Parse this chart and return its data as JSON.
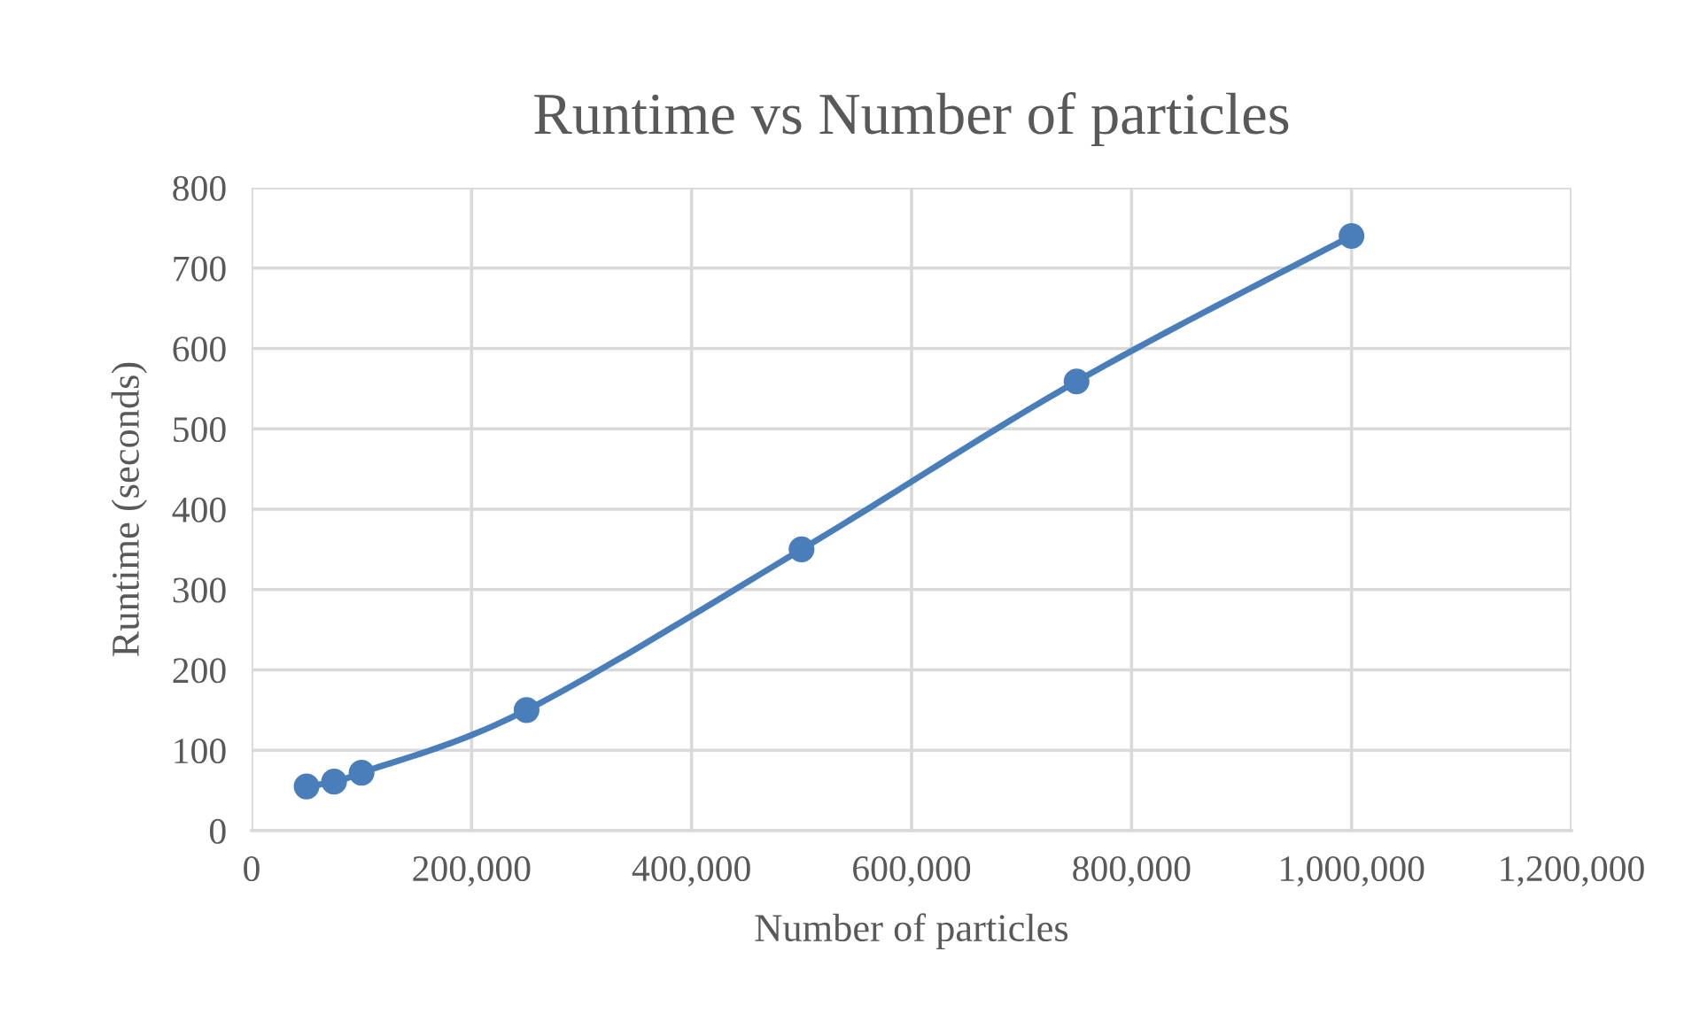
{
  "chart_data": {
    "type": "line",
    "title": "Runtime vs Number of particles",
    "xlabel": "Number of particles",
    "ylabel": "Runtime (seconds)",
    "x": [
      50000,
      75000,
      100000,
      250000,
      500000,
      750000,
      1000000
    ],
    "series": [
      {
        "color": "#4a7ebb",
        "values": [
          55,
          61,
          72,
          150,
          350,
          559,
          740
        ]
      }
    ],
    "xlim": [
      0,
      1200000
    ],
    "xticks": [
      {
        "value": 0,
        "label": "0"
      },
      {
        "value": 200000,
        "label": "200,000"
      },
      {
        "value": 400000,
        "label": "400,000"
      },
      {
        "value": 600000,
        "label": "600,000"
      },
      {
        "value": 800000,
        "label": "800,000"
      },
      {
        "value": 1000000,
        "label": "1,000,000"
      },
      {
        "value": 1200000,
        "label": "1,200,000"
      }
    ],
    "ylim": [
      0,
      800
    ],
    "yticks": [
      0,
      100,
      200,
      300,
      400,
      500,
      600,
      700,
      800
    ],
    "grid": true,
    "marker": "circle",
    "line_style": "solid"
  }
}
